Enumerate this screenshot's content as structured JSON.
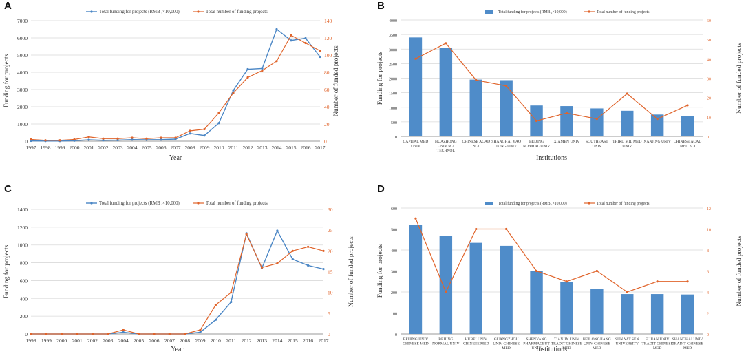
{
  "colors": {
    "funding": "#4a86c5",
    "count": "#e0642b",
    "bar": "#4f8cc9",
    "grid": "#d9d9d9",
    "axis_right": "#e0642b"
  },
  "chart_data": [
    {
      "panel": "A",
      "type": "line",
      "legend": [
        "Total funding for projects (RMB ,×10,000)",
        "Total number of funding projects"
      ],
      "xlabel": "Year",
      "ylabel": "Funding for projects",
      "y2label": "Number of funded projects",
      "ylim": [
        0,
        7000
      ],
      "yticks": [
        0,
        1000,
        2000,
        3000,
        4000,
        5000,
        6000,
        7000
      ],
      "y2lim": [
        0,
        140
      ],
      "y2ticks": [
        0,
        20,
        40,
        60,
        80,
        100,
        120,
        140
      ],
      "categories": [
        "1997",
        "1998",
        "1999",
        "2000",
        "2001",
        "2002",
        "2003",
        "2004",
        "2005",
        "2006",
        "2007",
        "2008",
        "2009",
        "2010",
        "2011",
        "2012",
        "2013",
        "2014",
        "2015",
        "2016",
        "2017"
      ],
      "series": [
        {
          "name": "funding",
          "axis": "left",
          "values": [
            20,
            10,
            10,
            30,
            80,
            50,
            60,
            90,
            80,
            90,
            120,
            450,
            330,
            1050,
            2950,
            4180,
            4220,
            6500,
            5850,
            5980,
            4900
          ]
        },
        {
          "name": "count",
          "axis": "right",
          "values": [
            2,
            1,
            1,
            2,
            5,
            3,
            3,
            4,
            3,
            4,
            4,
            12,
            14,
            33,
            56,
            74,
            82,
            93,
            123,
            114,
            105
          ]
        }
      ]
    },
    {
      "panel": "B",
      "type": "bar+line",
      "legend": [
        "Total funding for projects (RMB ,×10,000)",
        "Total number of funding projects"
      ],
      "xlabel": "Institutions",
      "ylabel": "Funding for projects",
      "y2label": "Number of funded projects",
      "ylim": [
        0,
        4000
      ],
      "yticks": [
        0,
        500,
        1000,
        1500,
        2000,
        2500,
        3000,
        3500,
        4000
      ],
      "y2lim": [
        0,
        60
      ],
      "y2ticks": [
        0,
        10,
        20,
        30,
        40,
        50,
        60
      ],
      "categories": [
        [
          "CAPITAL MED",
          "UNIV"
        ],
        [
          "HUAZHONG",
          "UNIV SCI",
          "TECHNOL"
        ],
        [
          "CHINESE ACAD",
          "SCI"
        ],
        [
          "SHANGHAI JIAO",
          "TONG UNIV"
        ],
        [
          "BEIJING",
          "NORMAL UNIV"
        ],
        [
          "XIAMEN UNIV"
        ],
        [
          "SOUTHEAST",
          "UNIV"
        ],
        [
          "THIRD MIL MED",
          "UNIV"
        ],
        [
          "NANJING UNIV"
        ],
        [
          "CHINESE ACAD",
          "MED SCI"
        ]
      ],
      "series": [
        {
          "name": "funding",
          "axis": "left",
          "values": [
            3400,
            3050,
            1950,
            1930,
            1060,
            1040,
            960,
            880,
            750,
            710
          ]
        },
        {
          "name": "count",
          "axis": "right",
          "values": [
            40,
            48,
            29,
            26,
            8,
            12,
            9,
            22,
            9,
            16
          ]
        }
      ]
    },
    {
      "panel": "C",
      "type": "line",
      "legend": [
        "Total funding for projects (RMB ,×10,000)",
        "Total number of funding projects"
      ],
      "xlabel": "Year",
      "ylabel": "Funding for projects",
      "y2label": "Number of funded projects",
      "ylim": [
        0,
        1400
      ],
      "yticks": [
        0,
        200,
        400,
        600,
        800,
        1000,
        1200,
        1400
      ],
      "y2lim": [
        0,
        30
      ],
      "y2ticks": [
        0,
        5,
        10,
        15,
        20,
        25,
        30
      ],
      "categories": [
        "1998",
        "1999",
        "2000",
        "2001",
        "2002",
        "2003",
        "2004",
        "2005",
        "2006",
        "2007",
        "2008",
        "2009",
        "2010",
        "2011",
        "2012",
        "2013",
        "2014",
        "2015",
        "2016",
        "2017"
      ],
      "series": [
        {
          "name": "funding",
          "axis": "left",
          "values": [
            0,
            0,
            0,
            0,
            0,
            0,
            20,
            0,
            0,
            0,
            0,
            20,
            160,
            360,
            1130,
            740,
            1160,
            840,
            770,
            730
          ]
        },
        {
          "name": "count",
          "axis": "right",
          "values": [
            0,
            0,
            0,
            0,
            0,
            0,
            1,
            0,
            0,
            0,
            0,
            1,
            7,
            10,
            24,
            16,
            17,
            20,
            21,
            20
          ]
        }
      ]
    },
    {
      "panel": "D",
      "type": "bar+line",
      "legend": [
        "Total funding for projects (RMB ,×10,000)",
        "Total number of funding projects"
      ],
      "xlabel": "Institutions",
      "ylabel": "Funding for projects",
      "y2label": "Number of funded projects",
      "ylim": [
        0,
        600
      ],
      "yticks": [
        0,
        100,
        200,
        300,
        400,
        500,
        600
      ],
      "y2lim": [
        0,
        12
      ],
      "y2ticks": [
        0,
        2,
        4,
        6,
        8,
        10,
        12
      ],
      "categories": [
        [
          "BEIJING UNIV",
          "CHINESE MED"
        ],
        [
          "BEIJING",
          "NORMAL UNIV"
        ],
        [
          "HUBEI UNIV",
          "CHINESE MED"
        ],
        [
          "GUANGZHOU",
          "UNIV CHINESE",
          "MED"
        ],
        [
          "SHENYANG",
          "PHARMACEUT",
          "UNIV"
        ],
        [
          "TIANJIN UNIV",
          "TRADIT CHINESE",
          "MED"
        ],
        [
          "HEILONGJIANG",
          "UNIV CHINESE",
          "MED"
        ],
        [
          "SUN YAT SEN",
          "UNIVERSITY"
        ],
        [
          "FUJIAN UNIV",
          "TRADIT CHINESE",
          "MED"
        ],
        [
          "SHANGHAI UNIV",
          "TRADIT CHINESE",
          "MED"
        ]
      ],
      "series": [
        {
          "name": "funding",
          "axis": "left",
          "values": [
            520,
            468,
            434,
            420,
            300,
            248,
            215,
            190,
            190,
            188
          ]
        },
        {
          "name": "count",
          "axis": "right",
          "values": [
            11,
            4,
            10,
            10,
            6,
            5,
            6,
            4,
            5,
            5
          ]
        }
      ]
    }
  ]
}
